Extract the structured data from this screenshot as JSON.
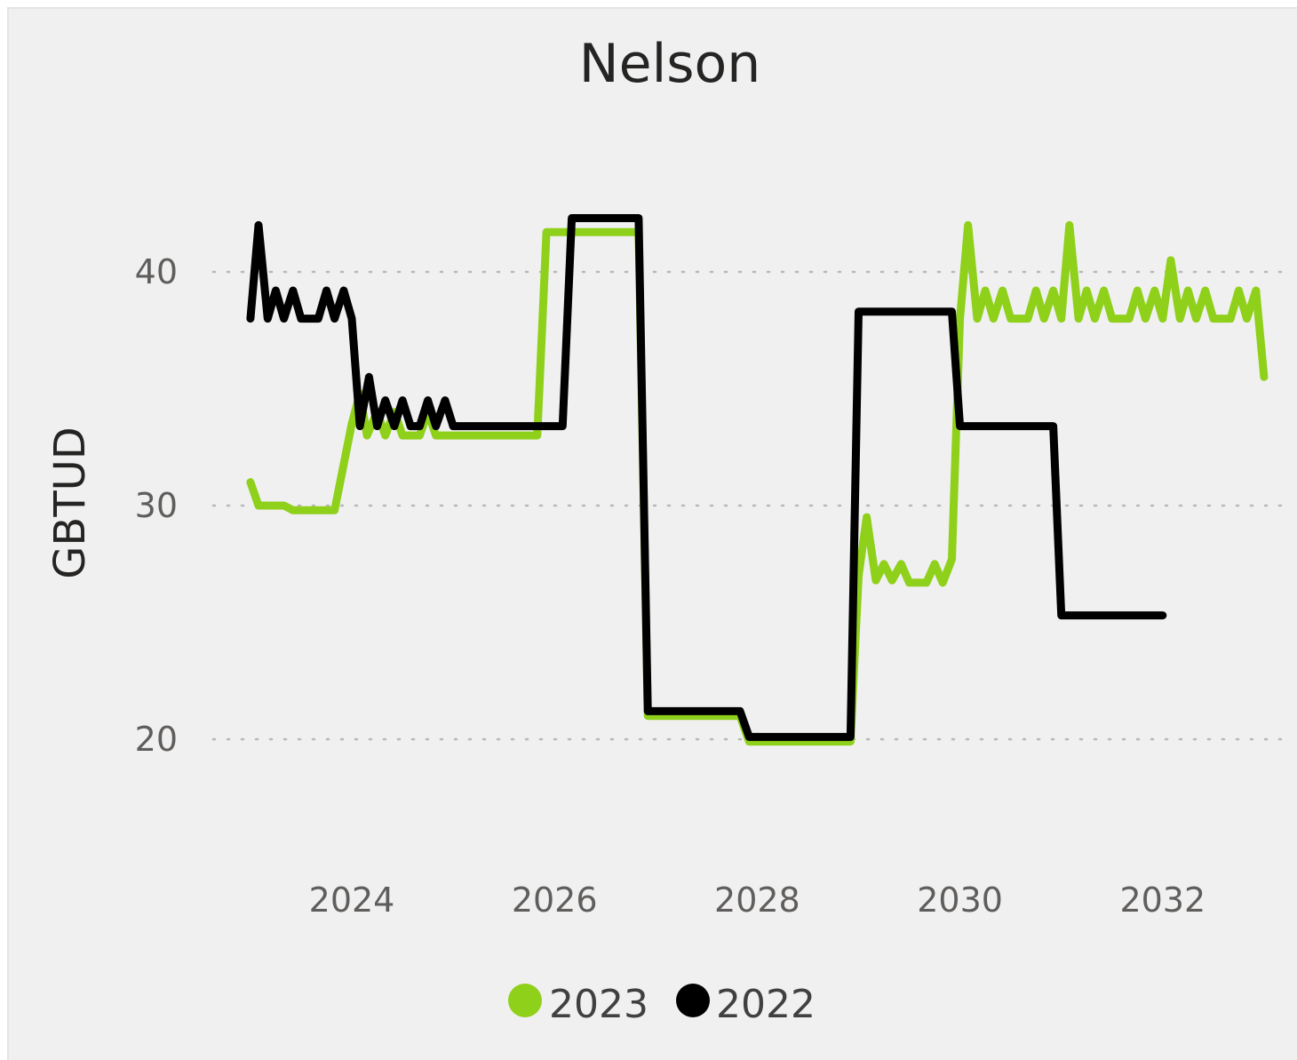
{
  "chart_data": {
    "type": "line",
    "title": "Nelson",
    "xlabel": "",
    "ylabel": "GBTUD",
    "xlim": [
      2022.8,
      2033.6
    ],
    "ylim": [
      15.5,
      44.5
    ],
    "x_ticks": [
      2024,
      2026,
      2028,
      2030,
      2032
    ],
    "x_tick_labels": [
      "2024",
      "2026",
      "2028",
      "2030",
      "2032"
    ],
    "y_ticks": [
      20,
      30,
      40
    ],
    "y_tick_labels": [
      "20",
      "30",
      "40"
    ],
    "grid": "horizontal dotted",
    "legend_position": "bottom",
    "series": [
      {
        "name": "2023",
        "color": "#8fd01a",
        "points": [
          [
            2023.0,
            31.0
          ],
          [
            2023.08,
            30.0
          ],
          [
            2023.33,
            30.0
          ],
          [
            2023.42,
            29.8
          ],
          [
            2023.83,
            29.8
          ],
          [
            2024.0,
            33.5
          ],
          [
            2024.08,
            34.8
          ],
          [
            2024.15,
            33.0
          ],
          [
            2024.25,
            34.0
          ],
          [
            2024.33,
            33.0
          ],
          [
            2024.42,
            34.0
          ],
          [
            2024.5,
            33.0
          ],
          [
            2024.67,
            33.0
          ],
          [
            2024.75,
            34.0
          ],
          [
            2024.83,
            33.0
          ],
          [
            2025.0,
            33.0
          ],
          [
            2025.83,
            33.0
          ],
          [
            2025.92,
            41.7
          ],
          [
            2026.83,
            41.7
          ],
          [
            2026.92,
            21.0
          ],
          [
            2027.83,
            21.0
          ],
          [
            2027.92,
            19.9
          ],
          [
            2028.92,
            19.9
          ],
          [
            2029.0,
            27.0
          ],
          [
            2029.08,
            29.5
          ],
          [
            2029.17,
            26.8
          ],
          [
            2029.25,
            27.5
          ],
          [
            2029.33,
            26.8
          ],
          [
            2029.42,
            27.5
          ],
          [
            2029.5,
            26.7
          ],
          [
            2029.67,
            26.7
          ],
          [
            2029.75,
            27.5
          ],
          [
            2029.83,
            26.7
          ],
          [
            2029.92,
            27.7
          ],
          [
            2030.0,
            38.0
          ],
          [
            2030.08,
            42.0
          ],
          [
            2030.17,
            38.0
          ],
          [
            2030.25,
            39.2
          ],
          [
            2030.33,
            38.0
          ],
          [
            2030.42,
            39.2
          ],
          [
            2030.5,
            38.0
          ],
          [
            2030.67,
            38.0
          ],
          [
            2030.75,
            39.2
          ],
          [
            2030.83,
            38.0
          ],
          [
            2030.92,
            39.2
          ],
          [
            2031.0,
            38.0
          ],
          [
            2031.08,
            42.0
          ],
          [
            2031.17,
            38.0
          ],
          [
            2031.25,
            39.2
          ],
          [
            2031.33,
            38.0
          ],
          [
            2031.42,
            39.2
          ],
          [
            2031.5,
            38.0
          ],
          [
            2031.67,
            38.0
          ],
          [
            2031.75,
            39.2
          ],
          [
            2031.83,
            38.0
          ],
          [
            2031.92,
            39.2
          ],
          [
            2032.0,
            38.0
          ],
          [
            2032.08,
            40.5
          ],
          [
            2032.17,
            38.0
          ],
          [
            2032.25,
            39.2
          ],
          [
            2032.33,
            38.0
          ],
          [
            2032.42,
            39.2
          ],
          [
            2032.5,
            38.0
          ],
          [
            2032.67,
            38.0
          ],
          [
            2032.75,
            39.2
          ],
          [
            2032.83,
            38.0
          ],
          [
            2032.92,
            39.2
          ],
          [
            2033.0,
            35.5
          ]
        ]
      },
      {
        "name": "2022",
        "color": "#000000",
        "points": [
          [
            2023.0,
            38.0
          ],
          [
            2023.08,
            42.0
          ],
          [
            2023.17,
            38.0
          ],
          [
            2023.25,
            39.2
          ],
          [
            2023.33,
            38.0
          ],
          [
            2023.42,
            39.2
          ],
          [
            2023.5,
            38.0
          ],
          [
            2023.67,
            38.0
          ],
          [
            2023.75,
            39.2
          ],
          [
            2023.83,
            38.0
          ],
          [
            2023.92,
            39.2
          ],
          [
            2024.0,
            38.0
          ],
          [
            2024.08,
            33.4
          ],
          [
            2024.17,
            35.5
          ],
          [
            2024.25,
            33.4
          ],
          [
            2024.33,
            34.5
          ],
          [
            2024.42,
            33.4
          ],
          [
            2024.5,
            34.5
          ],
          [
            2024.58,
            33.4
          ],
          [
            2024.67,
            33.4
          ],
          [
            2024.75,
            34.5
          ],
          [
            2024.83,
            33.4
          ],
          [
            2024.92,
            34.5
          ],
          [
            2025.0,
            33.4
          ],
          [
            2026.08,
            33.4
          ],
          [
            2026.17,
            42.3
          ],
          [
            2026.83,
            42.3
          ],
          [
            2026.92,
            21.2
          ],
          [
            2027.83,
            21.2
          ],
          [
            2027.92,
            20.1
          ],
          [
            2028.92,
            20.1
          ],
          [
            2029.0,
            38.3
          ],
          [
            2029.92,
            38.3
          ],
          [
            2030.0,
            33.4
          ],
          [
            2030.92,
            33.4
          ],
          [
            2031.0,
            25.3
          ],
          [
            2032.0,
            25.3
          ]
        ]
      }
    ]
  }
}
